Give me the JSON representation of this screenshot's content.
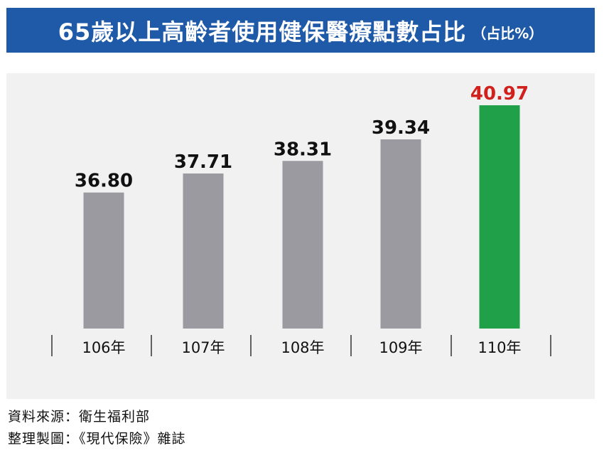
{
  "title": {
    "main": "65歲以上高齡者使用健保醫療點數占比",
    "sub": "（占比%）"
  },
  "chart_data": {
    "type": "bar",
    "categories": [
      "106年",
      "107年",
      "108年",
      "109年",
      "110年"
    ],
    "values": [
      36.8,
      37.71,
      38.31,
      39.34,
      40.97
    ],
    "value_labels": [
      "36.80",
      "37.71",
      "38.31",
      "39.34",
      "40.97"
    ],
    "ylim": [
      30.3,
      42.5
    ],
    "highlight_index": 4,
    "colors": {
      "bar": "#9b9aa0",
      "highlight_bar": "#21a04a",
      "label": "#111111",
      "highlight_label": "#d0211c",
      "banner": "#1f5aa8",
      "panel": "#f1f1f1"
    }
  },
  "sources": {
    "data_source": "資料來源：衛生福利部",
    "compiled_by": "整理製圖：《現代保險》雜誌"
  }
}
